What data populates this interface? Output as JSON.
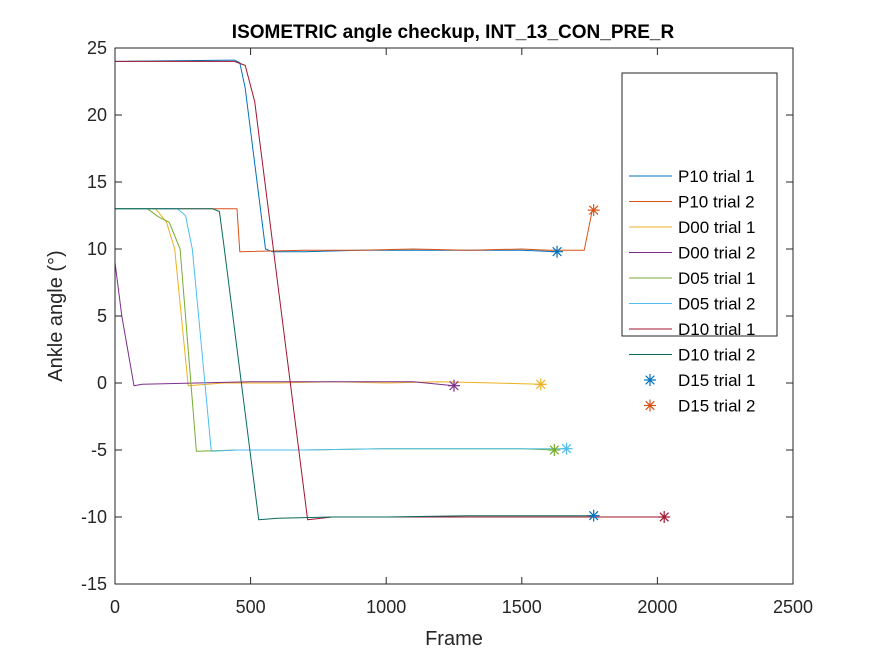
{
  "chart_data": {
    "type": "line",
    "title": "ISOMETRIC angle checkup, INT_13_CON_PRE_R",
    "xlabel": "Frame",
    "ylabel": "Ankle angle (°)",
    "xlim": [
      0,
      2500
    ],
    "ylim": [
      -15,
      25
    ],
    "xticks": [
      0,
      500,
      1000,
      1500,
      2000,
      2500
    ],
    "xtick_labels": [
      "0",
      "500",
      "1000",
      "1500",
      "2000",
      "2500"
    ],
    "yticks": [
      -15,
      -10,
      -5,
      0,
      5,
      10,
      15,
      20,
      25
    ],
    "ytick_labels": [
      "-15",
      "-10",
      "-5",
      "0",
      "5",
      "10",
      "15",
      "20",
      "25"
    ],
    "grid": false,
    "legend_position": "top-right",
    "series": [
      {
        "name": "P10 trial 1",
        "kind": "line",
        "color": "#0072BD",
        "x": [
          0,
          440,
          460,
          480,
          555,
          580,
          700,
          900,
          1100,
          1300,
          1500,
          1630
        ],
        "y": [
          24,
          24.1,
          23.9,
          22,
          10,
          9.8,
          9.8,
          9.9,
          9.9,
          9.9,
          9.9,
          9.8
        ]
      },
      {
        "name": "P10 trial 2",
        "kind": "line",
        "color": "#D95319",
        "x": [
          0,
          420,
          450,
          460,
          700,
          900,
          1100,
          1300,
          1500,
          1600,
          1730,
          1760
        ],
        "y": [
          13,
          13,
          13,
          9.8,
          9.9,
          9.9,
          10,
          9.9,
          10,
          9.9,
          9.9,
          12.9
        ]
      },
      {
        "name": "D00 trial 1",
        "kind": "line",
        "color": "#EDB120",
        "x": [
          0,
          150,
          190,
          220,
          270,
          400,
          600,
          800,
          1000,
          1200,
          1400,
          1570
        ],
        "y": [
          13,
          13,
          12,
          10,
          -0.2,
          0,
          0,
          0.1,
          0,
          0.1,
          0,
          -0.1
        ]
      },
      {
        "name": "D00 trial 2",
        "kind": "line",
        "color": "#7E2F8E",
        "x": [
          0,
          25,
          70,
          100,
          300,
          500,
          700,
          900,
          1100,
          1250
        ],
        "y": [
          9,
          5,
          -0.2,
          -0.1,
          0,
          0.1,
          0.1,
          0.1,
          0.1,
          -0.2
        ]
      },
      {
        "name": "D05 trial 1",
        "kind": "line",
        "color": "#77AC30",
        "x": [
          0,
          120,
          160,
          200,
          240,
          300,
          450,
          700,
          1000,
          1300,
          1500,
          1620
        ],
        "y": [
          13,
          13,
          12.4,
          12,
          10,
          -5.1,
          -5,
          -5,
          -4.9,
          -4.9,
          -4.9,
          -5
        ]
      },
      {
        "name": "D05 trial 2",
        "kind": "line",
        "color": "#4DBEEE",
        "x": [
          0,
          230,
          260,
          285,
          355,
          450,
          700,
          1000,
          1300,
          1500,
          1665
        ],
        "y": [
          13,
          13,
          12.5,
          10,
          -5.1,
          -5,
          -5,
          -4.9,
          -4.9,
          -4.9,
          -4.9
        ]
      },
      {
        "name": "D10 trial 1",
        "kind": "line",
        "color": "#A2142F",
        "x": [
          0,
          440,
          480,
          515,
          710,
          800,
          1000,
          1300,
          1600,
          1800,
          2025
        ],
        "y": [
          24,
          24,
          23.7,
          21,
          -10.2,
          -10,
          -10,
          -10,
          -10,
          -10,
          -10
        ]
      },
      {
        "name": "D10 trial 2",
        "kind": "line",
        "color": "#0A6A5E",
        "x": [
          0,
          360,
          385,
          400,
          530,
          600,
          800,
          1000,
          1300,
          1600,
          1765
        ],
        "y": [
          13,
          13,
          12.8,
          10.5,
          -10.2,
          -10.1,
          -10,
          -10,
          -9.9,
          -9.9,
          -9.9
        ]
      },
      {
        "name": "D15 trial 1",
        "kind": "marker",
        "color": "#0072BD",
        "x": [
          1630,
          1765
        ],
        "y": [
          9.8,
          -9.9
        ]
      },
      {
        "name": "D15 trial 2",
        "kind": "marker",
        "color": "#D95319",
        "x": [
          1765
        ],
        "y": [
          12.9
        ]
      }
    ],
    "end_markers": [
      {
        "x": 1570,
        "y": -0.1,
        "color": "#EDB120"
      },
      {
        "x": 1250,
        "y": -0.2,
        "color": "#7E2F8E"
      },
      {
        "x": 1620,
        "y": -5,
        "color": "#77AC30"
      },
      {
        "x": 1665,
        "y": -4.9,
        "color": "#4DBEEE"
      },
      {
        "x": 2025,
        "y": -10,
        "color": "#A2142F"
      }
    ]
  }
}
